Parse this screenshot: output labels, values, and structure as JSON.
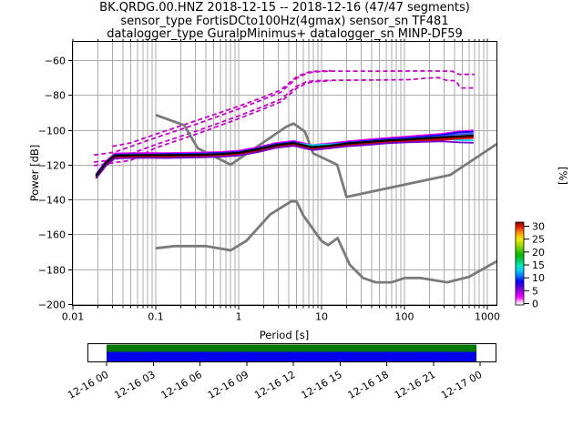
{
  "figure": {
    "title_line1": "BK.QRDG.00.HNZ   2018-12-15 -- 2018-12-16  (47/47 segments)",
    "title_line2": "sensor_type FortisDCto100Hz(4gmax) sensor_sn TF481",
    "title_line3": "datalogger_type GuralpMinimus+ datalogger_sn MINP-DF59"
  },
  "chart_data": {
    "type": "line",
    "title": "BK.QRDG.00.HNZ   2018-12-15 -- 2018-12-16  (47/47 segments)",
    "xlabel": "Period [s]",
    "ylabel": "Power [dB]",
    "right_label": "[%]",
    "xscale": "log",
    "xlim": [
      0.0097,
      1310
    ],
    "ylim": [
      -200.6,
      -49.3
    ],
    "grid": true,
    "xticks": [
      0.01,
      0.1,
      1,
      10,
      100,
      1000
    ],
    "xtick_labels": [
      "0.01",
      "0.1",
      "1",
      "10",
      "100",
      "1000"
    ],
    "yticks": [
      -60,
      -80,
      -100,
      -120,
      -140,
      -160,
      -180,
      -200
    ],
    "ytick_labels": [
      "−60",
      "−80",
      "−100",
      "−120",
      "−140",
      "−160",
      "−180",
      "−200"
    ],
    "grid_color": "#ababab",
    "noise_models": {
      "color": "#7a7a7a",
      "nlnm": [
        [
          0.1,
          -168.0
        ],
        [
          0.17,
          -166.7
        ],
        [
          0.4,
          -166.7
        ],
        [
          0.8,
          -169.2
        ],
        [
          1.24,
          -163.7
        ],
        [
          2.4,
          -148.6
        ],
        [
          4.3,
          -141.1
        ],
        [
          5.0,
          -141.1
        ],
        [
          6.0,
          -149.0
        ],
        [
          10.0,
          -163.8
        ],
        [
          12.0,
          -166.2
        ],
        [
          15.6,
          -162.1
        ],
        [
          21.9,
          -177.5
        ],
        [
          31.6,
          -185.0
        ],
        [
          45.0,
          -187.5
        ],
        [
          70.0,
          -187.5
        ],
        [
          101.0,
          -185.0
        ],
        [
          154.0,
          -185.0
        ],
        [
          328.0,
          -187.5
        ],
        [
          600.0,
          -184.4
        ],
        [
          1295.0,
          -175.5
        ]
      ],
      "nhnm": [
        [
          0.1,
          -91.5
        ],
        [
          0.22,
          -97.4
        ],
        [
          0.32,
          -110.5
        ],
        [
          0.8,
          -120.0
        ],
        [
          3.8,
          -98.1
        ],
        [
          4.6,
          -96.4
        ],
        [
          6.3,
          -101.0
        ],
        [
          7.9,
          -113.5
        ],
        [
          15.4,
          -120.0
        ],
        [
          20.0,
          -138.5
        ],
        [
          354.8,
          -126.0
        ],
        [
          1295.0,
          -108.2
        ]
      ]
    },
    "percentile_lines": {
      "color": "#cc00cc",
      "lines": [
        [
          [
            0.018,
            -114.5
          ],
          [
            0.032,
            -112.8
          ],
          [
            0.1,
            -104.5
          ],
          [
            0.32,
            -96.5
          ],
          [
            1.0,
            -88.0
          ],
          [
            2.0,
            -82.5
          ],
          [
            3.2,
            -78.5
          ],
          [
            4.0,
            -74.5
          ],
          [
            5.0,
            -70.5
          ],
          [
            6.5,
            -67.8
          ],
          [
            8.0,
            -66.8
          ],
          [
            13,
            -66.3
          ],
          [
            60,
            -66.3
          ],
          [
            200,
            -66.2
          ],
          [
            380,
            -66.4
          ],
          [
            460,
            -68.2
          ],
          [
            700,
            -68.2
          ]
        ],
        [
          [
            0.03,
            -109.5
          ],
          [
            0.05,
            -107.5
          ],
          [
            0.1,
            -102.5
          ],
          [
            0.32,
            -94.5
          ],
          [
            1.0,
            -86.5
          ],
          [
            2.0,
            -81.2
          ],
          [
            3.2,
            -77.2
          ],
          [
            4.0,
            -73.4
          ],
          [
            5.0,
            -69.6
          ],
          [
            6.5,
            -67.2
          ],
          [
            8.0,
            -66.5
          ],
          [
            13,
            -66.1
          ]
        ],
        [
          [
            0.018,
            -118.5
          ],
          [
            0.032,
            -117.2
          ],
          [
            0.1,
            -108.5
          ],
          [
            0.32,
            -100.5
          ],
          [
            1.0,
            -92.0
          ],
          [
            2.0,
            -86.5
          ],
          [
            3.2,
            -82.5
          ],
          [
            4.0,
            -78.8
          ],
          [
            5.0,
            -75.0
          ],
          [
            6.5,
            -72.6
          ],
          [
            8.0,
            -71.9
          ],
          [
            13,
            -71.6
          ],
          [
            60,
            -71.4
          ],
          [
            120,
            -71.2
          ],
          [
            180,
            -70.4
          ],
          [
            260,
            -70.1
          ],
          [
            320,
            -71.6
          ],
          [
            420,
            -71.9
          ],
          [
            470,
            -76.0
          ],
          [
            700,
            -76.0
          ]
        ],
        [
          [
            0.018,
            -120.5
          ],
          [
            0.05,
            -117.5
          ],
          [
            0.1,
            -110.3
          ],
          [
            0.32,
            -102.2
          ],
          [
            1.0,
            -93.6
          ],
          [
            2.0,
            -88.0
          ],
          [
            3.2,
            -84.0
          ],
          [
            4.0,
            -80.2
          ],
          [
            5.0,
            -76.2
          ],
          [
            6.5,
            -73.4
          ],
          [
            8.0,
            -72.4
          ],
          [
            13,
            -71.9
          ]
        ]
      ]
    },
    "psd": {
      "periods": [
        0.019,
        0.025,
        0.032,
        0.05,
        0.08,
        0.13,
        0.22,
        0.36,
        0.6,
        1.0,
        1.7,
        2.8,
        4.6,
        7.7,
        13,
        21,
        36,
        60,
        100,
        170,
        280,
        460,
        680
      ],
      "mean_color": "#000000",
      "mean": [
        -126.5,
        -119.0,
        -114.8,
        -114.6,
        -114.5,
        -114.5,
        -114.4,
        -114.2,
        -113.9,
        -113.2,
        -111.2,
        -108.8,
        -107.6,
        -110.0,
        -109.0,
        -107.8,
        -107.0,
        -106.2,
        -105.6,
        -104.9,
        -104.3,
        -103.7,
        -103.3
      ],
      "segments": [
        {
          "color": "#ee00ee",
          "values": [
            -125.4,
            -118.0,
            -113.6,
            -113.4,
            -113.3,
            -113.4,
            -113.2,
            -113.0,
            -112.7,
            -112.0,
            -110.0,
            -107.6,
            -106.4,
            -108.8,
            -107.7,
            -106.6,
            -105.6,
            -104.7,
            -104.0,
            -103.1,
            -102.3,
            -100.9,
            -100.3
          ]
        },
        {
          "color": "#0000ee",
          "values": [
            -126.0,
            -118.6,
            -114.2,
            -114.0,
            -114.1,
            -113.9,
            -113.8,
            -113.6,
            -113.3,
            -112.6,
            -110.6,
            -108.2,
            -107.0,
            -109.4,
            -108.3,
            -107.2,
            -106.3,
            -105.4,
            -104.7,
            -103.9,
            -103.0,
            -101.5,
            -101.1
          ]
        },
        {
          "color": "#3355ff",
          "values": [
            -126.3,
            -118.8,
            -114.5,
            -114.3,
            -114.2,
            -114.2,
            -114.0,
            -113.9,
            -113.6,
            -112.9,
            -110.9,
            -108.5,
            -107.3,
            -109.7,
            -108.6,
            -107.5,
            -106.7,
            -105.8,
            -105.2,
            -104.5,
            -103.7,
            -102.5,
            -102.2
          ]
        },
        {
          "color": "#00ccee",
          "values": [
            -126.2,
            -118.9,
            -114.9,
            -114.7,
            -114.6,
            -114.6,
            -114.5,
            -114.3,
            -114.0,
            -113.3,
            -111.3,
            -108.9,
            -107.7,
            -108.8,
            -108.3,
            -107.9,
            -107.1,
            -106.3,
            -105.7,
            -105.3,
            -105.0,
            -105.9,
            -106.2
          ]
        },
        {
          "color": "#00bb00",
          "values": [
            -126.8,
            -119.4,
            -115.1,
            -114.9,
            -114.9,
            -114.8,
            -114.7,
            -114.5,
            -114.2,
            -113.5,
            -111.5,
            -109.1,
            -107.9,
            -110.3,
            -109.2,
            -108.1,
            -107.4,
            -106.5,
            -105.9,
            -105.1,
            -104.7,
            -103.8,
            -103.5
          ]
        },
        {
          "color": "#88cc00",
          "values": [
            -127.0,
            -119.6,
            -115.4,
            -115.2,
            -115.1,
            -115.1,
            -114.9,
            -114.8,
            -114.5,
            -113.8,
            -111.8,
            -109.4,
            -108.2,
            -110.6,
            -109.5,
            -108.4,
            -107.7,
            -106.8,
            -106.1,
            -105.4,
            -105.0,
            -104.2,
            -103.9
          ]
        },
        {
          "color": "#ffcc00",
          "values": [
            -127.2,
            -119.9,
            -115.6,
            -115.4,
            -115.3,
            -115.4,
            -115.2,
            -115.0,
            -114.7,
            -114.0,
            -112.0,
            -109.6,
            -108.4,
            -110.8,
            -109.7,
            -108.6,
            -107.9,
            -107.0,
            -106.3,
            -105.6,
            -105.2,
            -104.4,
            -104.1
          ]
        },
        {
          "color": "#ff8800",
          "values": [
            -127.5,
            -120.2,
            -115.9,
            -115.7,
            -115.6,
            -115.7,
            -115.5,
            -115.3,
            -115.0,
            -114.3,
            -112.3,
            -109.9,
            -108.7,
            -111.1,
            -110.0,
            -108.9,
            -108.2,
            -107.3,
            -106.6,
            -105.9,
            -105.5,
            -104.7,
            -104.4
          ]
        },
        {
          "color": "#ee0000",
          "values": [
            -127.8,
            -120.5,
            -116.2,
            -116.0,
            -115.9,
            -116.0,
            -115.8,
            -115.6,
            -115.3,
            -114.6,
            -112.6,
            -110.2,
            -109.0,
            -111.4,
            -110.3,
            -109.2,
            -108.5,
            -107.6,
            -106.9,
            -106.2,
            -105.8,
            -105.0,
            -104.7
          ]
        },
        {
          "color": "#bb0000",
          "values": [
            -127.3,
            -120.0,
            -115.7,
            -115.5,
            -115.5,
            -115.5,
            -115.3,
            -115.2,
            -114.9,
            -114.2,
            -112.2,
            -109.8,
            -108.6,
            -111.0,
            -109.9,
            -108.8,
            -108.0,
            -107.2,
            -106.5,
            -105.8,
            -105.3,
            -104.6,
            -104.3
          ]
        },
        {
          "color": "#7700cc",
          "values": [
            -127.9,
            -120.7,
            -116.4,
            -116.2,
            -116.1,
            -116.2,
            -116.0,
            -115.8,
            -115.5,
            -114.8,
            -112.8,
            -110.4,
            -109.2,
            -111.6,
            -110.5,
            -109.4,
            -108.7,
            -107.8,
            -107.3,
            -106.9,
            -106.6,
            -107.2,
            -107.5
          ]
        }
      ]
    },
    "colorbar": {
      "label": "[%]",
      "tick_values": [
        0,
        5,
        10,
        15,
        20,
        25,
        30
      ],
      "tick_labels": [
        "0",
        "5",
        "10",
        "15",
        "20",
        "25",
        "30"
      ],
      "vmax_bar": 31.5,
      "stops": [
        [
          0,
          "#ffffff"
        ],
        [
          1,
          "#ffccff"
        ],
        [
          3,
          "#ff00ff"
        ],
        [
          5,
          "#aa00ee"
        ],
        [
          7,
          "#5500dd"
        ],
        [
          9,
          "#0000ff"
        ],
        [
          11,
          "#0077ff"
        ],
        [
          13,
          "#00ccff"
        ],
        [
          15,
          "#00eebb"
        ],
        [
          17,
          "#00cc55"
        ],
        [
          19,
          "#00bb00"
        ],
        [
          21,
          "#55cc00"
        ],
        [
          23,
          "#aadd00"
        ],
        [
          25,
          "#eeee00"
        ],
        [
          26.5,
          "#ffbb00"
        ],
        [
          28,
          "#ff7700"
        ],
        [
          29.5,
          "#ee2200"
        ],
        [
          31.5,
          "#880000"
        ]
      ]
    },
    "timeline": {
      "tick_labels": [
        "12-16 00",
        "12-16 03",
        "12-16 06",
        "12-16 09",
        "12-16 12",
        "12-16 15",
        "12-16 18",
        "12-16 21",
        "12-17 00"
      ],
      "coverage_top_color": "#007700",
      "coverage_bottom_color": "#0000ee"
    }
  }
}
